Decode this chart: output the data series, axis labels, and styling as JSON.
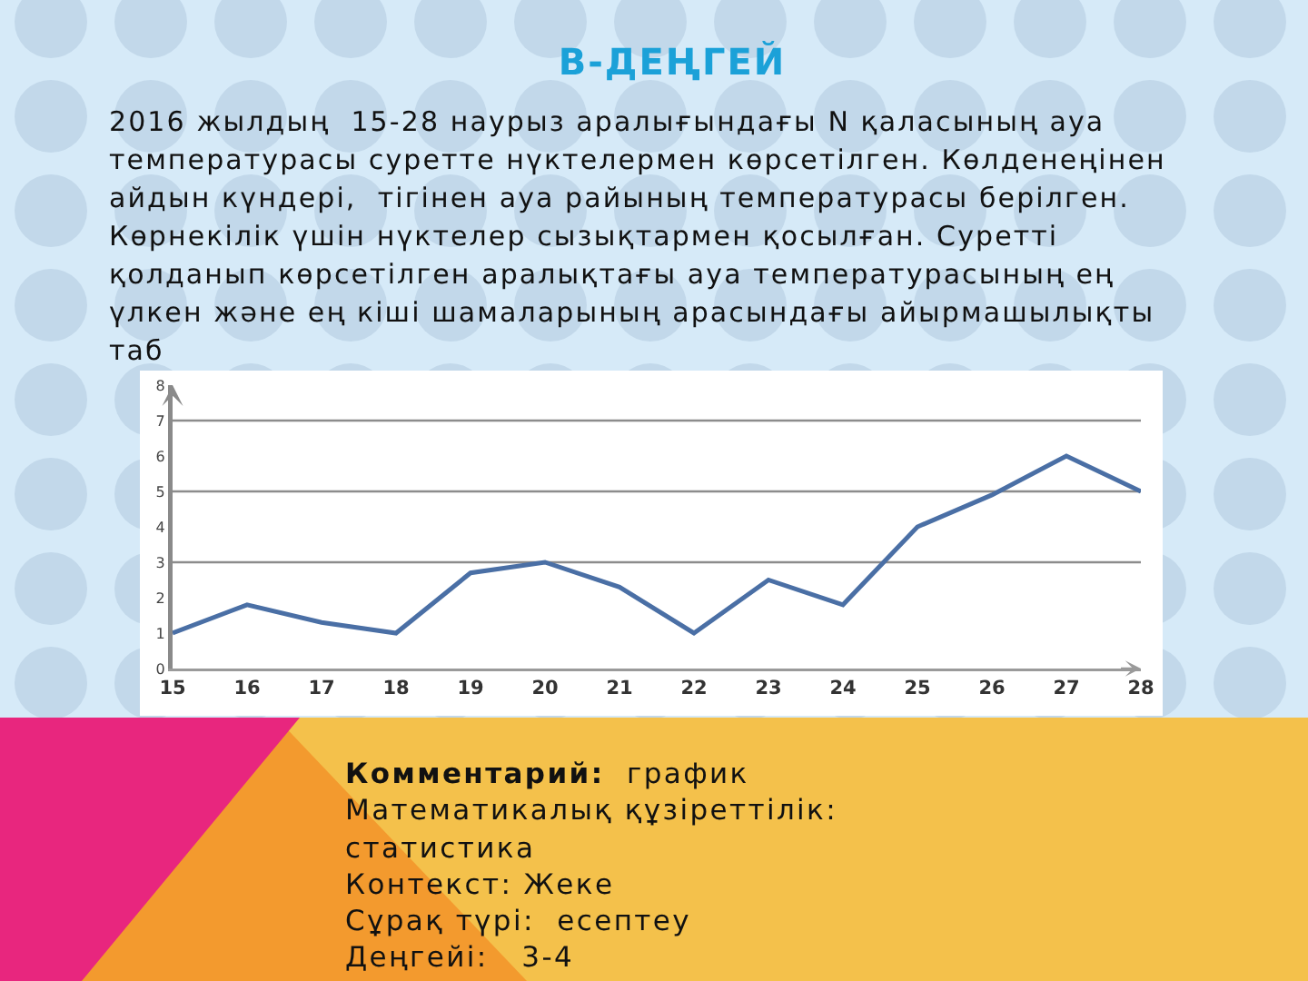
{
  "chart_data": {
    "type": "line",
    "title": "В-ДЕҢГЕЙ",
    "subtitle": "2016 жылдың  15-28 наурыз аралығындағы N қаласының ауа температурасы суретте нүктелермен көрсетілген. Көлденеңінен айдын күндері,  тігінен ауа райының температурасы берілген. Көрнекілік үшін нүктелер сызықтармен қосылған. Суретті қолданып көрсетілген аралықтағы ауа температурасының ең үлкен және ең кіші шамаларының арасындағы айырмашылықты таб",
    "categories": [
      "15",
      "16",
      "17",
      "18",
      "19",
      "20",
      "21",
      "22",
      "23",
      "24",
      "25",
      "26",
      "27",
      "28"
    ],
    "series": [
      {
        "color": "#4a6fa5",
        "values": [
          1.0,
          1.8,
          1.3,
          1.0,
          2.7,
          3.0,
          2.3,
          1.0,
          2.5,
          1.8,
          4.0,
          4.9,
          6.0,
          5.0
        ]
      }
    ],
    "ylim": [
      0,
      8
    ],
    "yticks": [
      0,
      1,
      2,
      3,
      4,
      5,
      6,
      7,
      8
    ],
    "ref_lines": [
      {
        "axis": "y",
        "value": 3,
        "color": "#8c8c8c"
      },
      {
        "axis": "y",
        "value": 5,
        "color": "#8c8c8c"
      },
      {
        "axis": "y",
        "value": 7,
        "color": "#8c8c8c"
      }
    ],
    "marker": "none",
    "line_style": "solid",
    "annotations": [
      "Комментарий:  график",
      "Математикалық құзіреттілік: статистика",
      "Контекст: Жеке",
      "Сұрақ түрі:  есептеу",
      "Деңгейі:   3-4"
    ]
  }
}
